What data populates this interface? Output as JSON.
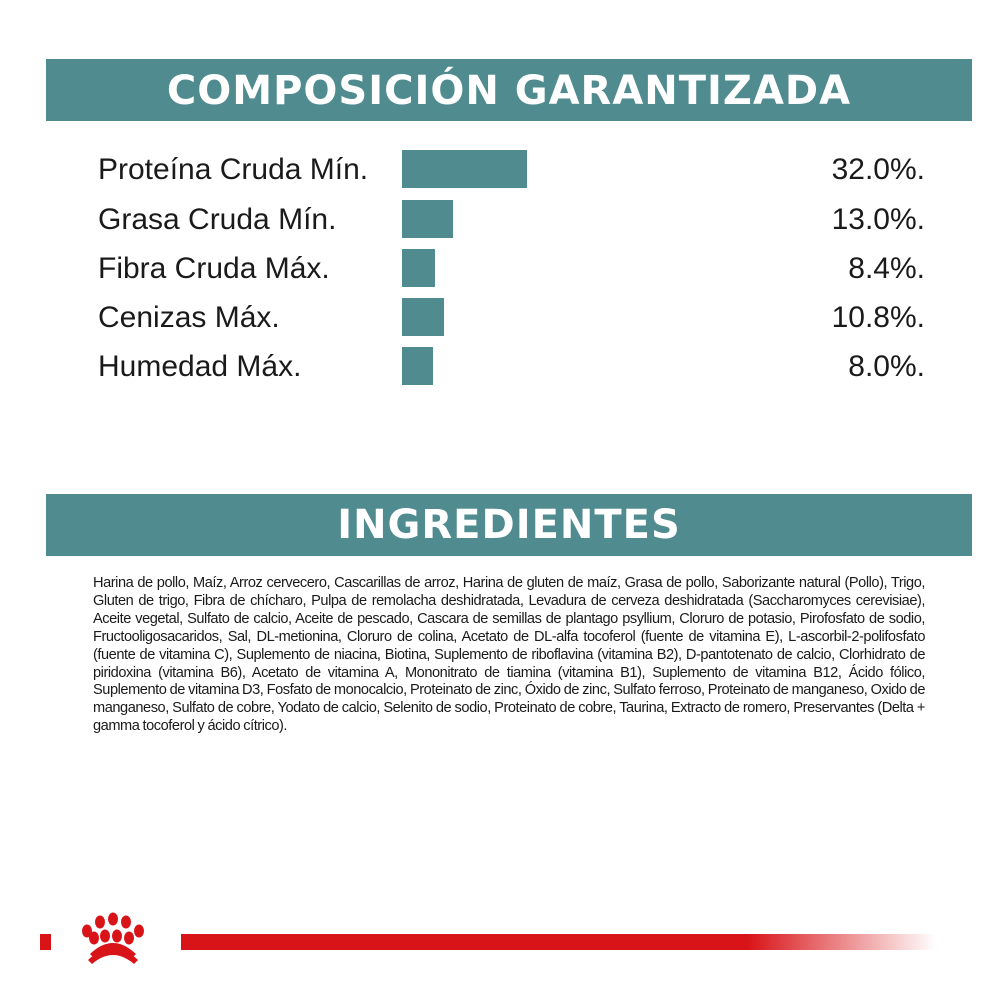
{
  "composition": {
    "title": "COMPOSICIÓN GARANTIZADA",
    "rows": [
      {
        "label": "Proteína Cruda Mín.",
        "value": "32.0%."
      },
      {
        "label": "Grasa Cruda Mín.",
        "value": "13.0%."
      },
      {
        "label": "Fibra Cruda Máx.",
        "value": "8.4%."
      },
      {
        "label": "Cenizas Máx.",
        "value": "10.8%."
      },
      {
        "label": "Humedad Máx.",
        "value": "8.0%."
      }
    ]
  },
  "chart_data": {
    "type": "bar",
    "orientation": "horizontal",
    "categories": [
      "Proteína Cruda Mín.",
      "Grasa Cruda Mín.",
      "Fibra Cruda Máx.",
      "Cenizas Máx.",
      "Humedad Máx."
    ],
    "values": [
      32.0,
      13.0,
      8.4,
      10.8,
      8.0
    ],
    "unit": "%",
    "grid": false,
    "bar_color": "#4f8b8f"
  },
  "ingredients": {
    "title": "INGREDIENTES",
    "text": "Harina de pollo, Maíz, Arroz cervecero, Cascarillas de arroz, Harina de gluten de maíz, Grasa de pollo, Saborizante natural (Pollo), Trigo, Gluten de trigo, Fibra de chícharo, Pulpa de remolacha deshidratada, Levadura de cerveza deshidratada (Saccharomyces cerevisiae), Aceite vegetal, Sulfato de calcio, Aceite de pescado, Cascara de semillas de plantago psyllium, Cloruro de potasio, Pirofosfato de sodio, Fructooligosacaridos, Sal, DL-metionina, Cloruro de colina, Acetato de DL-alfa tocoferol (fuente de vitamina E), L-ascorbil-2-polifosfato (fuente de vitamina C), Suplemento de niacina, Biotina, Suplemento de riboflavina (vitamina B2), D-pantotenato de calcio, Clorhidrato de piridoxina (vitamina B6), Acetato de vitamina A, Mononitrato de tiamina (vitamina B1), Suplemento de vitamina B12, Ácido fólico, Suplemento de vitamina D3, Fosfato de monocalcio, Proteinato de zinc, Óxido de zinc, Sulfato ferroso, Proteinato de manganeso, Oxido de manganeso, Sulfato de cobre, Yodato de calcio, Selenito de sodio, Proteinato de cobre, Taurina, Extracto de romero, Preservantes (Delta + gamma tocoferol y ácido cítrico)."
  },
  "colors": {
    "accent": "#4f8b8f",
    "brand_red": "#d81418"
  },
  "footer": {
    "logo_icon": "royal-canin-crown-logo"
  }
}
